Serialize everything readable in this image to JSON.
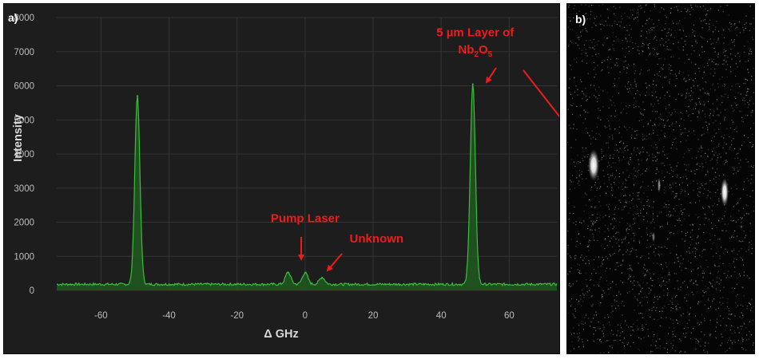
{
  "chart_data": {
    "type": "line",
    "panel_label": "a)",
    "xlabel": "Δ GHz",
    "ylabel": "Intensity",
    "xlim": [
      -73,
      74
    ],
    "ylim": [
      0,
      8000
    ],
    "xticks": [
      -60,
      -40,
      -20,
      0,
      20,
      40,
      60
    ],
    "yticks": [
      0,
      1000,
      2000,
      3000,
      4000,
      5000,
      6000,
      7000,
      8000
    ],
    "grid": true,
    "series": [
      {
        "color": "#3cbd3c",
        "fill": "#1f5a1f",
        "peaks": [
          {
            "x": -49.3,
            "y": 5700
          },
          {
            "x": -5.0,
            "y": 530
          },
          {
            "x": 0.0,
            "y": 520
          },
          {
            "x": 5.0,
            "y": 380
          },
          {
            "x": 49.3,
            "y": 6050
          }
        ],
        "baseline": 180
      }
    ],
    "annotations": [
      {
        "text": "Pump Laser",
        "x": 0,
        "y": 2000
      },
      {
        "text": "Unknown",
        "x": 21,
        "y": 1400
      },
      {
        "text": "5 µm Layer of",
        "x": 50,
        "y": 7450
      },
      {
        "text_base": "Nb",
        "sub1": "2",
        "mid": "O",
        "sub2": "5",
        "x": 50,
        "y": 6950
      }
    ]
  },
  "image_panel": {
    "panel_label": "b)"
  },
  "colors": {
    "annotation": "#ee1c1c",
    "plot_background": "#1d1d1d",
    "trace": "#3cbd3c"
  }
}
